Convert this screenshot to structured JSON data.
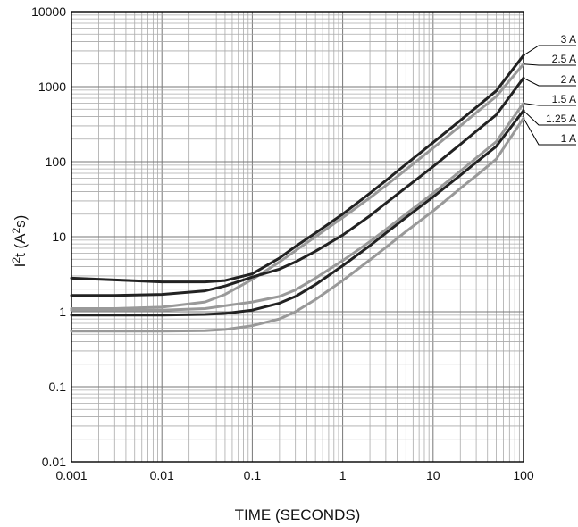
{
  "chart_data": {
    "type": "line",
    "title": "",
    "xlabel": "TIME (SECONDS)",
    "ylabel_main": "I",
    "ylabel_sup1": "2",
    "ylabel_mid": "t (A",
    "ylabel_sup2": "2",
    "ylabel_end": "s)",
    "xscale": "log",
    "yscale": "log",
    "xlim": [
      0.001,
      100
    ],
    "ylim": [
      0.01,
      10000
    ],
    "grid": true,
    "x_ticks": [
      {
        "value": 0.001,
        "label": "0.001"
      },
      {
        "value": 0.01,
        "label": "0.01"
      },
      {
        "value": 0.1,
        "label": "0.1"
      },
      {
        "value": 1,
        "label": "1"
      },
      {
        "value": 10,
        "label": "10"
      },
      {
        "value": 100,
        "label": "100"
      }
    ],
    "y_ticks": [
      {
        "value": 0.01,
        "label": "0.01"
      },
      {
        "value": 0.1,
        "label": "0.1"
      },
      {
        "value": 1,
        "label": "1"
      },
      {
        "value": 10,
        "label": "10"
      },
      {
        "value": 100,
        "label": "100"
      },
      {
        "value": 1000,
        "label": "1000"
      },
      {
        "value": 10000,
        "label": "10000"
      }
    ],
    "legend_placement": "right",
    "x": [
      0.001,
      0.003,
      0.01,
      0.03,
      0.05,
      0.1,
      0.2,
      0.3,
      0.5,
      1,
      2,
      3,
      5,
      10,
      20,
      30,
      50,
      100
    ],
    "series": [
      {
        "name": "3 A",
        "color": "#222222",
        "values": [
          2.8,
          2.65,
          2.5,
          2.5,
          2.6,
          3.2,
          5.2,
          7.4,
          11.2,
          20,
          38,
          56,
          92,
          180,
          355,
          530,
          880,
          2600
        ]
      },
      {
        "name": "2.5 A",
        "color": "#999999",
        "values": [
          1.1,
          1.1,
          1.15,
          1.35,
          1.7,
          2.7,
          4.6,
          6.5,
          10,
          18,
          33,
          48,
          78,
          152,
          300,
          450,
          740,
          2000
        ]
      },
      {
        "name": "2 A",
        "color": "#222222",
        "values": [
          1.65,
          1.65,
          1.7,
          1.9,
          2.2,
          2.9,
          3.7,
          4.6,
          6.4,
          10.5,
          19,
          28,
          45,
          86,
          170,
          255,
          420,
          1300
        ]
      },
      {
        "name": "1.5 A",
        "color": "#999999",
        "values": [
          1.05,
          1.05,
          1.05,
          1.1,
          1.2,
          1.35,
          1.6,
          1.95,
          2.8,
          4.8,
          8.6,
          12.5,
          20,
          38,
          75,
          112,
          185,
          600
        ]
      },
      {
        "name": "1.25 A",
        "color": "#222222",
        "values": [
          0.9,
          0.9,
          0.9,
          0.92,
          0.95,
          1.05,
          1.3,
          1.6,
          2.3,
          4.1,
          7.6,
          11.2,
          18,
          34,
          66,
          98,
          160,
          480
        ]
      },
      {
        "name": "1 A",
        "color": "#999999",
        "values": [
          0.55,
          0.55,
          0.55,
          0.56,
          0.58,
          0.65,
          0.8,
          1.0,
          1.45,
          2.6,
          4.9,
          7.2,
          11.7,
          22,
          44,
          65,
          108,
          380
        ]
      }
    ]
  }
}
